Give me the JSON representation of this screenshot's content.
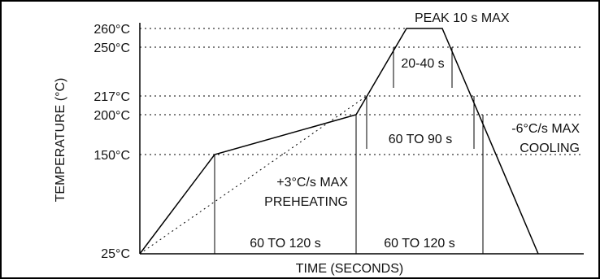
{
  "y_axis": {
    "title": "TEMPERATURE (°C)",
    "ticks": [
      "260°C",
      "250°C",
      "217°C",
      "200°C",
      "150°C",
      "25°C"
    ]
  },
  "x_axis": {
    "title": "TIME (SECONDS)"
  },
  "annotations": {
    "peak": "PEAK 10 s MAX",
    "above_250_time": "20-40 s",
    "above_217_time": "60 TO 90 s",
    "cooling_rate": "-6°C/s MAX",
    "cooling": "COOLING",
    "preheat_rate": "+3°C/s MAX",
    "preheating": "PREHEATING",
    "preheat_soak_time": "60 TO 120 s",
    "reflow_time": "60 TO 120 s"
  }
}
